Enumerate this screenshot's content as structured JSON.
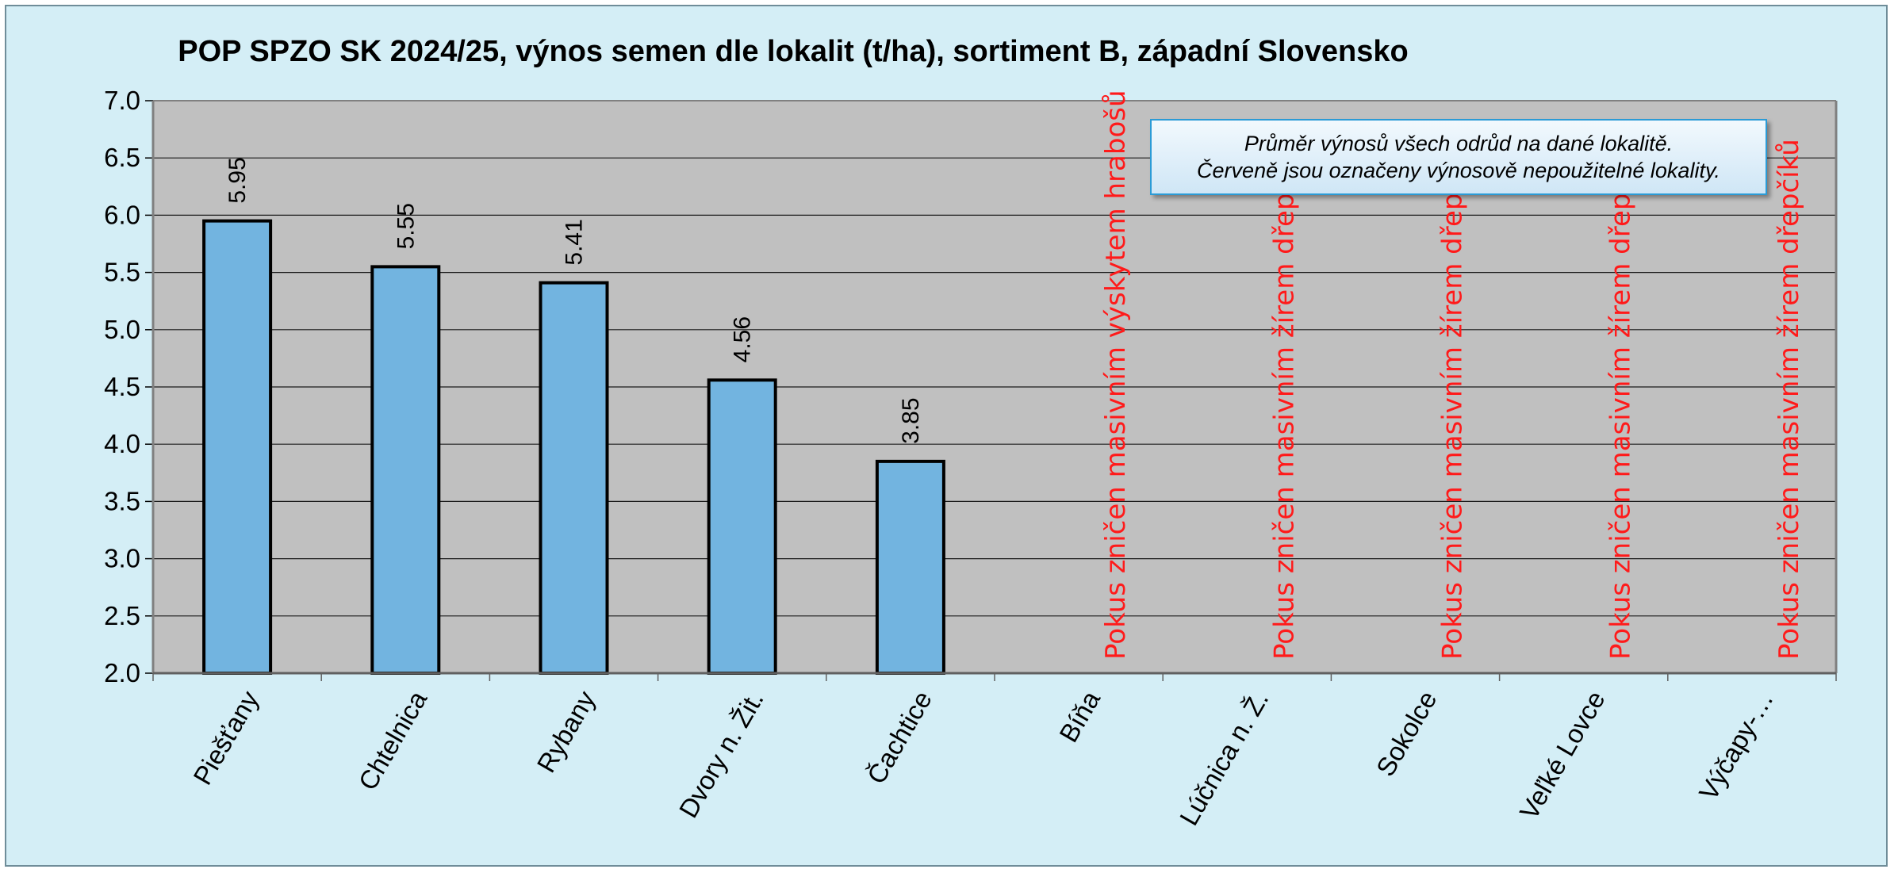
{
  "chart_data": {
    "type": "bar",
    "title": "POP SPZO SK 2024/25, výnos semen dle lokalit (t/ha), sortiment B, západní Slovensko",
    "xlabel": "",
    "ylabel": "",
    "ylim": [
      2.0,
      7.0
    ],
    "ytick_step": 0.5,
    "ytick_labels": [
      "2.0",
      "2.5",
      "3.0",
      "3.5",
      "4.0",
      "4.5",
      "5.0",
      "5.5",
      "6.0",
      "6.5",
      "7.0"
    ],
    "grid": true,
    "categories": [
      "Piešťany",
      "Chtelnica",
      "Rybany",
      "Dvory n. Žit.",
      "Čachtice",
      "Bíňa",
      "Lúčnica n. Ž.",
      "Sokolce",
      "Veľké Lovce",
      "Výčapy-…"
    ],
    "values": [
      5.95,
      5.55,
      5.41,
      4.56,
      3.85,
      null,
      null,
      null,
      null,
      null
    ],
    "data_labels": [
      "5.95",
      "5.55",
      "5.41",
      "4.56",
      "3.85",
      "",
      "",
      "",
      "",
      ""
    ],
    "unusable_labels": [
      "",
      "",
      "",
      "",
      "",
      "Pokus zničen masivním výskytem hrabošů",
      "Pokus zničen masivním žírem dřepčíků",
      "Pokus zničen masivním žírem dřepčíků",
      "Pokus zničen masivním žírem dřepčíků",
      "Pokus zničen masivním žírem dřepčíků"
    ],
    "annotation": {
      "line1": "Průměr výnosů všech odrůd na dané lokalitě.",
      "line2": "Červeně jsou označeny výnosově nepoužitelné lokality."
    }
  },
  "colors": {
    "bar_fill": "#72b4e0",
    "bar_stroke": "#000000",
    "plot_background": "#c0c0c0",
    "chart_background": "#d4eef6",
    "unusable_text": "#ff1a1a",
    "gridline": "#1a1a1a"
  }
}
